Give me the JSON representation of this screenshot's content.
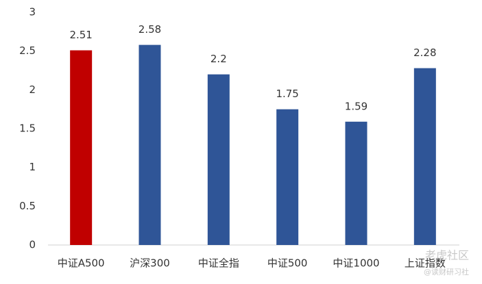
{
  "chart_data": {
    "type": "bar",
    "categories": [
      "中证A500",
      "沪深300",
      "中证全指",
      "中证500",
      "中证1000",
      "上证指数"
    ],
    "values": [
      2.51,
      2.58,
      2.2,
      1.75,
      1.59,
      2.28
    ],
    "colors": [
      "#c00000",
      "#2f5597",
      "#2f5597",
      "#2f5597",
      "#2f5597",
      "#2f5597"
    ],
    "ylim": [
      0,
      3
    ],
    "yticks": [
      0,
      0.5,
      1,
      1.5,
      2,
      2.5,
      3
    ],
    "grid": false,
    "watermark": [
      "老虎社区",
      "@读财研习社"
    ]
  }
}
